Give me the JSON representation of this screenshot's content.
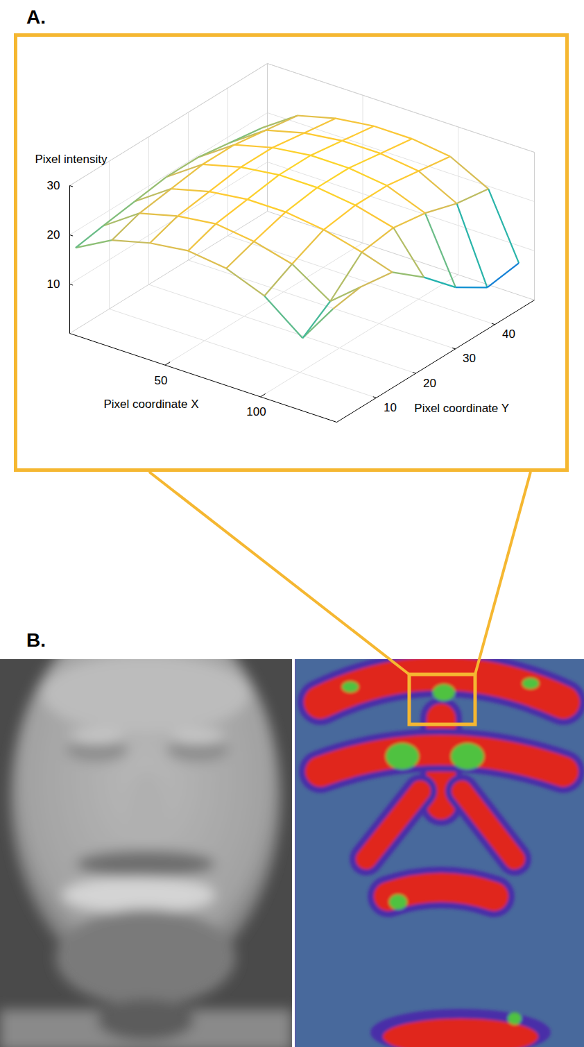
{
  "chart_data": {
    "type": "surface",
    "panel": "A.",
    "z_label": "Pixel intensity",
    "x_label": "Pixel coordinate X",
    "y_label": "Pixel coordinate Y",
    "x": [
      1,
      20,
      40,
      60,
      80,
      100,
      120,
      136
    ],
    "y": [
      1,
      8,
      16,
      24,
      32,
      40,
      48
    ],
    "z": [
      [
        17,
        21,
        23,
        24,
        23,
        20,
        14,
        22
      ],
      [
        18,
        23,
        25,
        26,
        25,
        23,
        18,
        23
      ],
      [
        19,
        24,
        26,
        27,
        27,
        26,
        24,
        22
      ],
      [
        20,
        25,
        27,
        28,
        28,
        27,
        25,
        17
      ],
      [
        20,
        25,
        27,
        28,
        28,
        27,
        24,
        11
      ],
      [
        19,
        24,
        26,
        27,
        27,
        26,
        22,
        7
      ],
      [
        18,
        23,
        25,
        26,
        26,
        25,
        21,
        8
      ]
    ],
    "xlim": [
      0,
      140
    ],
    "ylim": [
      0,
      50
    ],
    "zlim": [
      0,
      30
    ],
    "xticks": [
      50,
      100
    ],
    "yticks": [
      10,
      20,
      30,
      40
    ],
    "zticks": [
      10,
      20,
      30
    ],
    "grid": true
  },
  "panel_b": {
    "panel": "B."
  }
}
